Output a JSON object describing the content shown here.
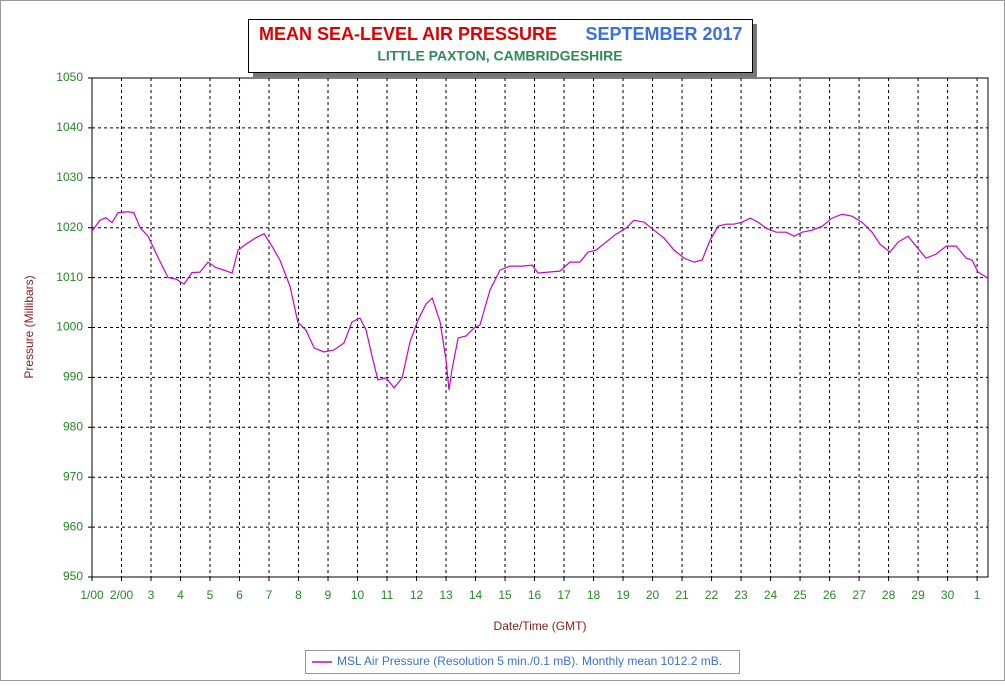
{
  "chart_data": {
    "type": "line",
    "title": "MEAN SEA-LEVEL AIR PRESSURE",
    "title_date": "SEPTEMBER 2017",
    "subtitle": "LITTLE PAXTON, CAMBRIDGESHIRE",
    "x_label": "Date/Time (GMT)",
    "y_label": "Pressure (Millibars)",
    "grid": true,
    "xlim": [
      0,
      30.37
    ],
    "ylim": [
      950,
      1050
    ],
    "yticks": [
      950,
      960,
      970,
      980,
      990,
      1000,
      1010,
      1020,
      1030,
      1040,
      1050
    ],
    "xticks": [
      {
        "value": 0,
        "label": "1/00"
      },
      {
        "value": 1,
        "label": "2/00"
      },
      {
        "value": 2,
        "label": "3"
      },
      {
        "value": 3,
        "label": "4"
      },
      {
        "value": 4,
        "label": "5"
      },
      {
        "value": 5,
        "label": "6"
      },
      {
        "value": 6,
        "label": "7"
      },
      {
        "value": 7,
        "label": "8"
      },
      {
        "value": 8,
        "label": "9"
      },
      {
        "value": 9,
        "label": "10"
      },
      {
        "value": 10,
        "label": "11"
      },
      {
        "value": 11,
        "label": "12"
      },
      {
        "value": 12,
        "label": "13"
      },
      {
        "value": 13,
        "label": "14"
      },
      {
        "value": 14,
        "label": "15"
      },
      {
        "value": 15,
        "label": "16"
      },
      {
        "value": 16,
        "label": "17"
      },
      {
        "value": 17,
        "label": "18"
      },
      {
        "value": 18,
        "label": "19"
      },
      {
        "value": 19,
        "label": "20"
      },
      {
        "value": 20,
        "label": "21"
      },
      {
        "value": 21,
        "label": "22"
      },
      {
        "value": 22,
        "label": "23"
      },
      {
        "value": 23,
        "label": "24"
      },
      {
        "value": 24,
        "label": "25"
      },
      {
        "value": 25,
        "label": "26"
      },
      {
        "value": 26,
        "label": "27"
      },
      {
        "value": 27,
        "label": "28"
      },
      {
        "value": 28,
        "label": "29"
      },
      {
        "value": 29,
        "label": "30"
      },
      {
        "value": 30,
        "label": "1"
      }
    ],
    "x": [
      0,
      0.27,
      0.47,
      0.68,
      0.88,
      1.22,
      1.42,
      1.63,
      1.9,
      2.24,
      2.58,
      2.85,
      3.12,
      3.39,
      3.66,
      3.93,
      4.2,
      4.47,
      4.75,
      4.95,
      5.22,
      5.56,
      5.83,
      6.1,
      6.37,
      6.71,
      6.98,
      7.25,
      7.53,
      7.86,
      8.2,
      8.54,
      8.81,
      9.08,
      9.29,
      9.49,
      9.69,
      9.97,
      10.24,
      10.51,
      10.78,
      11.05,
      11.32,
      11.53,
      11.8,
      12.0,
      12.1,
      12.2,
      12.41,
      12.68,
      12.95,
      13.15,
      13.49,
      13.83,
      14.17,
      14.58,
      14.92,
      15.12,
      15.46,
      15.86,
      16.2,
      16.54,
      16.81,
      17.08,
      17.42,
      17.76,
      18.1,
      18.37,
      18.71,
      19.05,
      19.39,
      19.73,
      20.07,
      20.41,
      20.68,
      20.95,
      21.22,
      21.49,
      21.76,
      22.03,
      22.31,
      22.58,
      22.85,
      23.19,
      23.53,
      23.8,
      24.07,
      24.41,
      24.75,
      25.08,
      25.42,
      25.76,
      26.1,
      26.44,
      26.71,
      27.05,
      27.32,
      27.66,
      27.93,
      28.27,
      28.61,
      28.95,
      29.29,
      29.63,
      29.83,
      30.03,
      30.37
    ],
    "series": [
      {
        "name": "MSL Air Pressure (Resolution 5 min./0.1 mB). Monthly mean 1012.2 mB.",
        "color": "#cc00cc",
        "values": [
          1019.3,
          1021.5,
          1022,
          1021,
          1023,
          1023.2,
          1023,
          1020,
          1018.3,
          1014,
          1010,
          1009.7,
          1008.7,
          1011,
          1011.1,
          1013.1,
          1012,
          1011.5,
          1010.9,
          1015.5,
          1016.7,
          1018,
          1018.8,
          1016.3,
          1013.5,
          1008.3,
          1001,
          999.5,
          995.9,
          995.1,
          995.5,
          996.9,
          1001.1,
          1001.9,
          999.5,
          994.3,
          989.5,
          989.9,
          987.9,
          989.9,
          997.1,
          1001.5,
          1004.7,
          1005.9,
          1001.1,
          993.5,
          987.5,
          991.5,
          997.9,
          998.3,
          999.9,
          1000.5,
          1007.5,
          1011.5,
          1012.3,
          1012.3,
          1012.5,
          1010.9,
          1011.1,
          1011.3,
          1013.1,
          1013.1,
          1015.1,
          1015.5,
          1017.1,
          1018.7,
          1019.9,
          1021.5,
          1021.1,
          1019.5,
          1017.9,
          1015.5,
          1013.9,
          1013.1,
          1013.5,
          1017.5,
          1020.3,
          1020.7,
          1020.7,
          1021.1,
          1021.9,
          1021.1,
          1019.9,
          1019.1,
          1019.1,
          1018.3,
          1019.1,
          1019.5,
          1020.3,
          1021.9,
          1022.7,
          1022.3,
          1021.1,
          1019.1,
          1016.7,
          1015.1,
          1017.1,
          1018.3,
          1016.3,
          1013.9,
          1014.7,
          1016.3,
          1016.3,
          1013.9,
          1013.5,
          1011.1,
          1009.9
        ]
      }
    ]
  }
}
